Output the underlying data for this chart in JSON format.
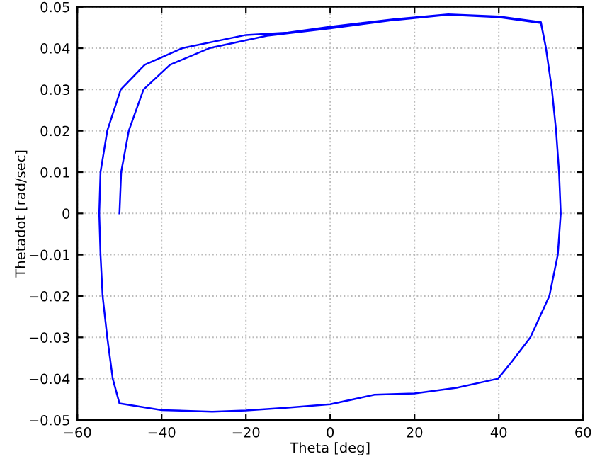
{
  "chart_data": {
    "type": "line",
    "xlabel": "Theta [deg]",
    "ylabel": "Thetadot [rad/sec]",
    "series": [
      {
        "color": "#0000ff",
        "x": [
          -50,
          -49.6,
          -47.8,
          -44.3,
          -38,
          -28.7,
          -15,
          0,
          15,
          28,
          40,
          50,
          51.2,
          52.6,
          53.6,
          54.3,
          54.7,
          54,
          52,
          47.5,
          43,
          39.8,
          30,
          20,
          10.5,
          0,
          -10,
          -20,
          -28,
          -40,
          -50,
          -51.6,
          -52.9,
          -54,
          -54.5,
          -54.8,
          -54.5,
          -52.9,
          -49.7,
          -44,
          -35.1,
          -20,
          -10,
          0,
          15,
          28,
          40,
          50,
          51.2,
          52.6,
          53.6,
          54.3,
          54.7
        ],
        "values": [
          0,
          0.01,
          0.02,
          0.03,
          0.036,
          0.04,
          0.043,
          0.0448,
          0.0468,
          0.0481,
          0.0475,
          0.0461,
          0.04,
          0.03,
          0.02,
          0.01,
          0,
          -0.01,
          -0.02,
          -0.03,
          -0.036,
          -0.04,
          -0.0422,
          -0.0436,
          -0.0439,
          -0.0462,
          -0.047,
          -0.0477,
          -0.048,
          -0.0476,
          -0.046,
          -0.04,
          -0.03,
          -0.02,
          -0.01,
          0,
          0.01,
          0.02,
          0.03,
          0.036,
          0.04,
          0.0432,
          0.0438,
          0.0452,
          0.047,
          0.0482,
          0.0477,
          0.0463,
          0.04,
          0.03,
          0.02,
          0.01,
          0
        ]
      }
    ],
    "xlim": [
      -60,
      60
    ],
    "xticks": [
      {
        "value": -60,
        "label": "−60"
      },
      {
        "value": -40,
        "label": "−40"
      },
      {
        "value": -20,
        "label": "−20"
      },
      0,
      20,
      40,
      60
    ],
    "ylim": [
      -0.05,
      0.05
    ],
    "yticks": [
      {
        "value": -0.05,
        "label": "−0.05"
      },
      {
        "value": -0.04,
        "label": "−0.04"
      },
      {
        "value": -0.03,
        "label": "−0.03"
      },
      {
        "value": -0.02,
        "label": "−0.02"
      },
      {
        "value": -0.01,
        "label": "−0.01"
      },
      0,
      0.01,
      0.02,
      0.03,
      0.04,
      0.05
    ],
    "grid": true,
    "line_style": "solid"
  }
}
